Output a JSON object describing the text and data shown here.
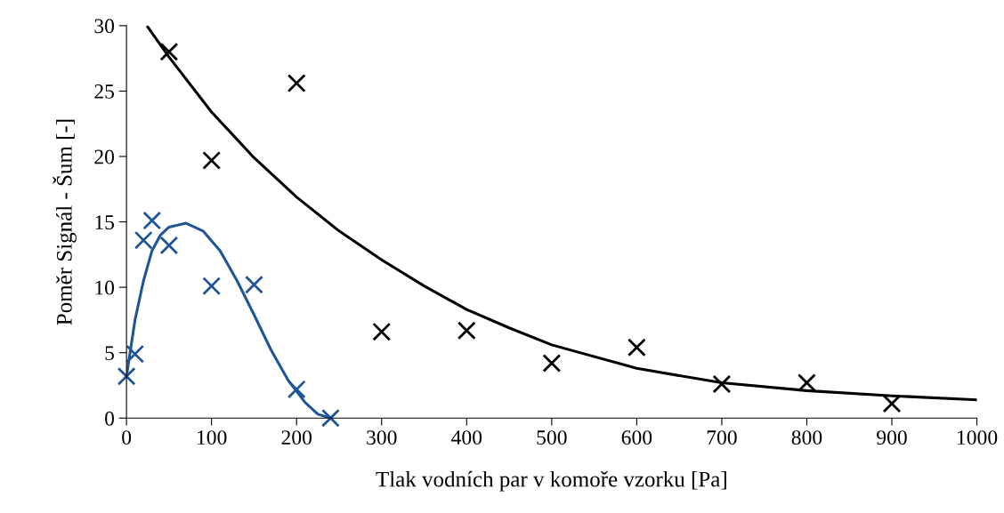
{
  "chart_data": {
    "type": "scatter",
    "xlabel": "Tlak vodních par v komoře vzorku [Pa]",
    "ylabel": "Poměr Signál - Šum [-]",
    "xlim": [
      0,
      1000
    ],
    "xticks": [
      0,
      100,
      200,
      300,
      400,
      500,
      600,
      700,
      800,
      900,
      1000
    ],
    "ylim": [
      0,
      30
    ],
    "yticks": [
      0,
      5,
      10,
      15,
      20,
      25,
      30
    ],
    "grid": false,
    "legend": false,
    "marker": "cross",
    "series": [
      {
        "color": "#000000",
        "x": [
          50,
          100,
          200,
          300,
          400,
          500,
          600,
          700,
          800,
          900
        ],
        "values": [
          28.0,
          19.7,
          25.6,
          6.6,
          6.7,
          4.2,
          5.4,
          2.6,
          2.7,
          1.1
        ]
      },
      {
        "color": "#1f5596",
        "x": [
          0,
          10,
          20,
          30,
          50,
          100,
          150,
          200,
          240
        ],
        "values": [
          3.2,
          4.9,
          13.6,
          15.1,
          13.2,
          10.1,
          10.2,
          2.2,
          0
        ]
      },
      {
        "type": "line",
        "color": "#000000",
        "marker": "none",
        "line_style": "solid",
        "x": [
          25,
          50,
          100,
          150,
          200,
          250,
          300,
          350,
          400,
          450,
          500,
          600,
          700,
          800,
          900,
          1000
        ],
        "values": [
          29.9,
          27.6,
          23.4,
          19.9,
          16.9,
          14.3,
          12.1,
          10.1,
          8.3,
          6.9,
          5.6,
          3.8,
          2.7,
          2.1,
          1.7,
          1.4
        ]
      },
      {
        "type": "line",
        "color": "#1f5596",
        "marker": "none",
        "line_style": "solid",
        "x": [
          0,
          10,
          20,
          30,
          40,
          50,
          70,
          90,
          110,
          130,
          150,
          170,
          190,
          210,
          225,
          240
        ],
        "values": [
          3.2,
          7.5,
          10.5,
          12.8,
          14.0,
          14.6,
          14.9,
          14.3,
          12.8,
          10.5,
          7.9,
          5.2,
          2.9,
          1.2,
          0.3,
          0
        ]
      }
    ]
  }
}
